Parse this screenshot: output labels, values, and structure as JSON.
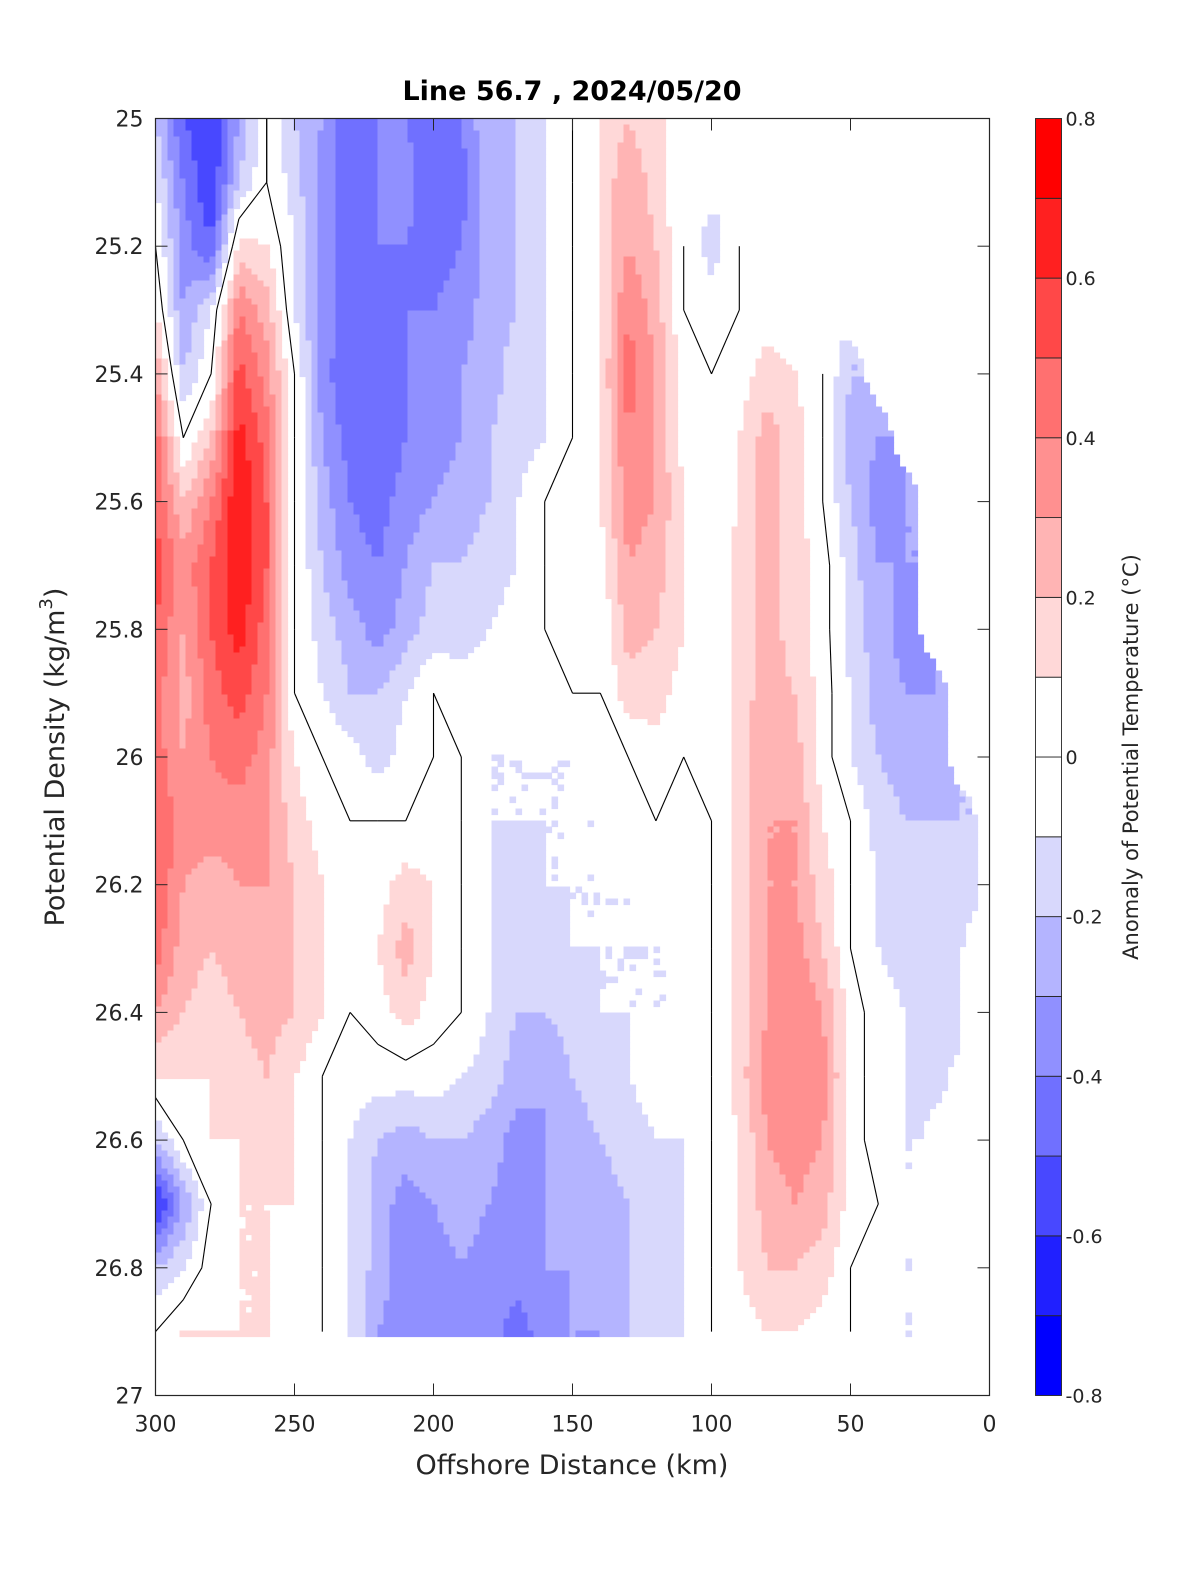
{
  "chart_data": {
    "type": "heatmap",
    "subtype": "filled-contour",
    "title": "Line 56.7 , 2024/05/20",
    "xlabel": "Offshore Distance (km)",
    "ylabel": "Potential Density (kg/m",
    "ylabel_superscript": "3",
    "ylabel_suffix": ")",
    "xlim": [
      300,
      0
    ],
    "ylim": [
      25,
      27
    ],
    "x_reversed": true,
    "y_reversed": true,
    "xticks": [
      300,
      250,
      200,
      150,
      100,
      50,
      0
    ],
    "xtick_labels": [
      "300",
      "250",
      "200",
      "150",
      "100",
      "50",
      "0"
    ],
    "yticks": [
      25,
      25.2,
      25.4,
      25.6,
      25.8,
      26,
      26.2,
      26.4,
      26.6,
      26.8,
      27
    ],
    "ytick_labels": [
      "25",
      "25.2",
      "25.4",
      "25.6",
      "25.8",
      "26",
      "26.2",
      "26.4",
      "26.6",
      "26.8",
      "27"
    ],
    "colorbar": {
      "label": "Anomaly of Potential Temperature (°C)",
      "range": [
        -0.8,
        0.8
      ],
      "levels": [
        -0.8,
        -0.7,
        -0.6,
        -0.5,
        -0.4,
        -0.3,
        -0.2,
        -0.1,
        0,
        0.1,
        0.2,
        0.3,
        0.4,
        0.5,
        0.6,
        0.7,
        0.8
      ],
      "ticks": [
        0.8,
        0.6,
        0.4,
        0.2,
        0,
        -0.2,
        -0.4,
        -0.6,
        -0.8
      ],
      "tick_labels": [
        "0.8",
        "0.6",
        "0.4",
        "0.2",
        "0",
        "-0.2",
        "-0.4",
        "-0.6",
        "-0.8"
      ],
      "colors": [
        "#0000ff",
        "#2020ff",
        "#4848ff",
        "#7070ff",
        "#9090ff",
        "#b4b4ff",
        "#d8d8fc",
        "#ffffff",
        "#ffffff",
        "#ffd8d8",
        "#ffb4b4",
        "#ff9090",
        "#ff7070",
        "#ff4848",
        "#ff2020",
        "#ff0000"
      ]
    },
    "zero_contour": true,
    "grid_x_km": [
      300,
      290,
      280,
      270,
      260,
      250,
      240,
      230,
      220,
      210,
      200,
      190,
      180,
      170,
      160,
      150,
      140,
      130,
      120,
      110,
      100,
      90,
      80,
      70,
      60,
      50,
      40,
      30,
      20,
      10,
      0
    ],
    "grid_y_density": [
      25.0,
      25.1,
      25.2,
      25.3,
      25.4,
      25.5,
      25.6,
      25.7,
      25.8,
      25.9,
      26.0,
      26.1,
      26.2,
      26.3,
      26.4,
      26.5,
      26.6,
      26.7,
      26.8,
      26.9
    ],
    "values": [
      [
        -0.2,
        -0.5,
        -0.6,
        -0.3,
        0.0,
        -0.2,
        -0.3,
        -0.5,
        -0.4,
        -0.4,
        -0.5,
        -0.4,
        -0.2,
        -0.2,
        -0.1,
        0.0,
        0.1,
        0.2,
        0.1,
        null,
        null,
        null,
        null,
        null,
        null,
        null,
        null,
        null,
        null,
        null,
        null
      ],
      [
        -0.1,
        -0.4,
        -0.6,
        -0.2,
        0.0,
        -0.15,
        -0.35,
        -0.45,
        -0.4,
        -0.35,
        -0.5,
        -0.45,
        -0.25,
        -0.2,
        -0.1,
        0.0,
        0.1,
        0.3,
        0.15,
        0.0,
        null,
        null,
        null,
        null,
        null,
        null,
        null,
        null,
        null,
        null,
        null
      ],
      [
        0.0,
        -0.35,
        -0.5,
        0.15,
        0.1,
        -0.1,
        -0.35,
        -0.45,
        -0.4,
        -0.4,
        -0.45,
        -0.4,
        -0.25,
        -0.2,
        -0.1,
        0.0,
        0.1,
        0.3,
        0.2,
        0.0,
        -0.15,
        0.0,
        0.0,
        null,
        null,
        null,
        null,
        null,
        null,
        null,
        null
      ],
      [
        0.1,
        -0.3,
        -0.1,
        0.4,
        0.25,
        -0.1,
        -0.35,
        -0.45,
        -0.45,
        -0.4,
        -0.4,
        -0.35,
        -0.25,
        -0.2,
        -0.1,
        0.0,
        0.1,
        0.4,
        0.25,
        0.0,
        -0.05,
        0.0,
        0.05,
        0.0,
        null,
        null,
        null,
        null,
        null,
        null,
        null
      ],
      [
        0.3,
        -0.2,
        0.0,
        0.55,
        0.35,
        0.0,
        -0.35,
        -0.5,
        -0.45,
        -0.4,
        -0.35,
        -0.3,
        -0.25,
        -0.15,
        -0.1,
        0.0,
        0.1,
        0.45,
        0.3,
        0.05,
        0.0,
        0.05,
        0.15,
        0.1,
        0.0,
        -0.2,
        null,
        null,
        null,
        null,
        null
      ],
      [
        0.45,
        0.0,
        0.2,
        0.65,
        0.45,
        0.0,
        -0.3,
        -0.45,
        -0.5,
        -0.4,
        -0.35,
        -0.3,
        -0.2,
        -0.15,
        -0.1,
        0.0,
        0.1,
        0.4,
        0.3,
        0.05,
        0.0,
        0.1,
        0.25,
        0.15,
        0.0,
        -0.25,
        -0.3,
        null,
        null,
        null,
        null
      ],
      [
        0.5,
        0.2,
        0.4,
        0.7,
        0.5,
        0.0,
        -0.25,
        -0.4,
        -0.45,
        -0.35,
        -0.3,
        -0.25,
        -0.2,
        -0.1,
        0.0,
        0.05,
        0.1,
        0.35,
        0.3,
        0.1,
        0.0,
        0.1,
        0.25,
        0.15,
        0.0,
        -0.2,
        -0.35,
        -0.3,
        null,
        null,
        null
      ],
      [
        0.55,
        0.35,
        0.5,
        0.7,
        0.5,
        0.0,
        -0.2,
        -0.35,
        -0.4,
        -0.3,
        -0.2,
        -0.2,
        -0.15,
        -0.1,
        0.0,
        0.0,
        0.05,
        0.3,
        0.25,
        0.1,
        0.0,
        0.15,
        0.25,
        0.15,
        0.05,
        -0.15,
        -0.3,
        -0.3,
        null,
        null,
        null
      ],
      [
        0.5,
        0.3,
        0.5,
        0.65,
        0.45,
        0.0,
        -0.15,
        -0.25,
        -0.35,
        -0.25,
        -0.15,
        -0.15,
        -0.1,
        -0.05,
        0.0,
        0.0,
        0.0,
        0.25,
        0.2,
        0.1,
        0.0,
        0.15,
        0.25,
        0.15,
        0.05,
        -0.15,
        -0.25,
        -0.35,
        null,
        null,
        null
      ],
      [
        0.45,
        0.25,
        0.45,
        0.55,
        0.4,
        0.0,
        -0.1,
        -0.2,
        -0.2,
        -0.1,
        0.0,
        -0.05,
        -0.05,
        -0.1,
        -0.05,
        0.0,
        0.0,
        0.15,
        0.15,
        0.05,
        0.0,
        0.15,
        0.25,
        0.2,
        0.05,
        -0.1,
        -0.25,
        -0.3,
        -0.3,
        null,
        null
      ],
      [
        0.45,
        0.3,
        0.4,
        0.45,
        0.35,
        0.1,
        0.0,
        -0.05,
        -0.15,
        -0.05,
        0.0,
        0.0,
        -0.1,
        -0.1,
        -0.1,
        -0.1,
        -0.05,
        0.0,
        0.05,
        0.0,
        0.0,
        0.15,
        0.3,
        0.25,
        0.05,
        -0.1,
        -0.2,
        -0.25,
        -0.25,
        null,
        null
      ],
      [
        0.5,
        0.35,
        0.35,
        0.35,
        0.3,
        0.15,
        0.05,
        0.0,
        0.0,
        0.0,
        0.0,
        0.0,
        -0.1,
        -0.1,
        -0.1,
        -0.1,
        -0.1,
        -0.05,
        0.0,
        -0.1,
        0.0,
        0.15,
        0.3,
        0.3,
        0.1,
        0.0,
        -0.15,
        -0.2,
        -0.2,
        -0.2,
        null
      ],
      [
        0.5,
        0.3,
        0.25,
        0.3,
        0.3,
        0.2,
        0.1,
        0.0,
        0.05,
        0.15,
        0.1,
        0.0,
        -0.1,
        -0.15,
        -0.1,
        -0.1,
        -0.1,
        -0.1,
        -0.05,
        -0.1,
        0.0,
        0.15,
        0.3,
        0.3,
        0.15,
        0.0,
        -0.1,
        -0.15,
        -0.15,
        -0.15,
        null
      ],
      [
        0.45,
        0.25,
        0.2,
        0.25,
        0.25,
        0.2,
        0.1,
        0.0,
        0.1,
        0.25,
        0.1,
        0.0,
        -0.1,
        -0.2,
        -0.15,
        -0.1,
        -0.1,
        -0.1,
        -0.1,
        -0.1,
        0.0,
        0.15,
        0.3,
        0.35,
        0.2,
        0.0,
        -0.1,
        -0.15,
        -0.2,
        -0.1,
        0.0
      ],
      [
        0.3,
        0.2,
        0.15,
        0.2,
        0.25,
        0.2,
        0.1,
        0.0,
        0.05,
        0.15,
        0.05,
        0.0,
        -0.1,
        -0.2,
        -0.2,
        -0.15,
        -0.1,
        -0.1,
        -0.1,
        -0.1,
        0.0,
        0.15,
        0.3,
        0.4,
        0.3,
        0.05,
        -0.05,
        -0.1,
        -0.2,
        -0.1,
        -0.05
      ],
      [
        0.1,
        0.1,
        0.1,
        0.15,
        0.2,
        0.1,
        0.0,
        -0.05,
        -0.05,
        -0.05,
        -0.05,
        -0.1,
        -0.15,
        -0.25,
        -0.3,
        -0.2,
        -0.15,
        -0.1,
        -0.05,
        -0.05,
        0.0,
        0.15,
        0.35,
        0.4,
        0.35,
        0.05,
        -0.05,
        -0.1,
        -0.15,
        null,
        null
      ],
      [
        -0.2,
        0.0,
        0.1,
        0.1,
        0.15,
        0.1,
        0.0,
        -0.1,
        -0.2,
        -0.25,
        -0.2,
        -0.2,
        -0.25,
        -0.35,
        -0.3,
        -0.25,
        -0.2,
        -0.15,
        -0.1,
        -0.1,
        0.0,
        0.1,
        0.3,
        0.35,
        0.3,
        0.05,
        -0.05,
        -0.1,
        null,
        null,
        null
      ],
      [
        -0.65,
        -0.3,
        0.0,
        0.1,
        0.1,
        0.1,
        0.0,
        -0.1,
        -0.25,
        -0.35,
        -0.3,
        -0.25,
        -0.3,
        -0.35,
        -0.3,
        -0.25,
        -0.25,
        -0.2,
        -0.15,
        -0.1,
        0.0,
        0.1,
        0.25,
        0.3,
        0.25,
        0.05,
        0.0,
        -0.1,
        null,
        null,
        null
      ],
      [
        -0.2,
        -0.1,
        0.05,
        0.1,
        0.1,
        0.05,
        0.0,
        -0.1,
        -0.25,
        -0.35,
        -0.35,
        -0.3,
        -0.35,
        -0.35,
        -0.3,
        -0.3,
        -0.25,
        -0.2,
        -0.2,
        -0.1,
        0.0,
        0.1,
        0.2,
        0.2,
        0.15,
        0.0,
        -0.05,
        -0.1,
        null,
        null,
        null
      ],
      [
        0.0,
        0.1,
        0.1,
        0.1,
        0.1,
        0.05,
        0.0,
        -0.1,
        -0.3,
        -0.35,
        -0.35,
        -0.35,
        -0.35,
        -0.45,
        -0.35,
        -0.3,
        -0.3,
        -0.2,
        -0.15,
        -0.1,
        0.0,
        0.05,
        0.1,
        0.1,
        0.05,
        0.0,
        -0.05,
        -0.1,
        null,
        null,
        null
      ]
    ]
  }
}
